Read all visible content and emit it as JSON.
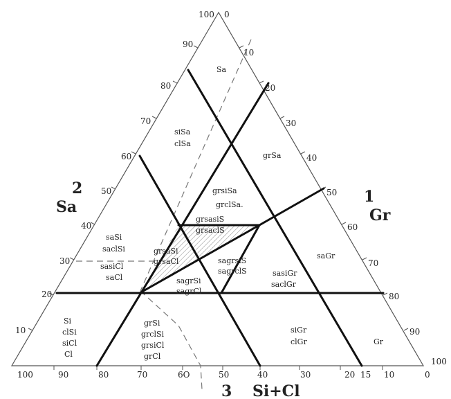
{
  "axes": {
    "left": {
      "number": "2",
      "name": "Sa",
      "ticks": [
        "10",
        "20",
        "30",
        "40",
        "50",
        "60",
        "70",
        "80",
        "90",
        "100"
      ]
    },
    "right": {
      "number": "1",
      "name": "Gr",
      "ticks": [
        "0",
        "10",
        "20",
        "30",
        "40",
        "50",
        "60",
        "70",
        "80",
        "90",
        "100"
      ]
    },
    "bottom": {
      "number": "3",
      "name": "Si+Cl",
      "ticks": [
        "100",
        "90",
        "80",
        "70",
        "6O",
        "50",
        "40",
        "30",
        "20",
        "15",
        "10",
        "0"
      ]
    }
  },
  "zones": {
    "sa": [
      "Sa"
    ],
    "sisa": [
      "siSa",
      "clSa"
    ],
    "grsa": [
      "grSa"
    ],
    "grsisa": [
      "grsiSa",
      "grclSa."
    ],
    "grsasis": [
      "grsasiS",
      "grsaclS"
    ],
    "sasi": [
      "saSi",
      "saclSi"
    ],
    "sasicl": [
      "sasiCl",
      "saCl"
    ],
    "grsasi": [
      "grsaSi",
      "grsaCl"
    ],
    "sagrsis": [
      "sagrsiS",
      "sagrclS"
    ],
    "sagrsi": [
      "sagrSi",
      "sagrCl"
    ],
    "sagr": [
      "saGr"
    ],
    "sasigr": [
      "sasiGr",
      "saclGr"
    ],
    "si": [
      "Si",
      "clSi",
      "siCl",
      "Cl"
    ],
    "grsi": [
      "grSi",
      "grclSi",
      "grsiCl",
      "grCl"
    ],
    "sigr": [
      "siGr",
      "clGr"
    ],
    "gr": [
      "Gr"
    ]
  },
  "colors": {
    "thick_line": "#111111",
    "edge": "#555555",
    "hatch": "#8a8a8a",
    "text": "#222222"
  }
}
